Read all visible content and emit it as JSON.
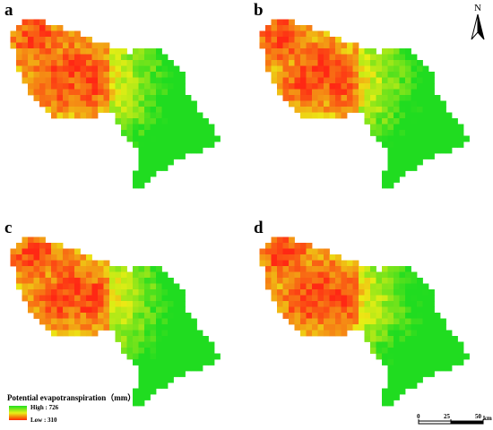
{
  "panels": [
    {
      "label": "a"
    },
    {
      "label": "b"
    },
    {
      "label": "c"
    },
    {
      "label": "d"
    }
  ],
  "north_arrow": {
    "letter": "N",
    "icon": "north-arrow-icon"
  },
  "legend": {
    "title": "Potential evapotranspiration（mm）",
    "high_label": "High : 726",
    "low_label": "Low : 310",
    "high_value": 726,
    "low_value": 310,
    "colors": {
      "high": "#1fe01f",
      "mid": "#e9f017",
      "low": "#ff2a00"
    }
  },
  "scale_bar": {
    "ticks": [
      "0",
      "25",
      "50"
    ],
    "unit": "km"
  }
}
